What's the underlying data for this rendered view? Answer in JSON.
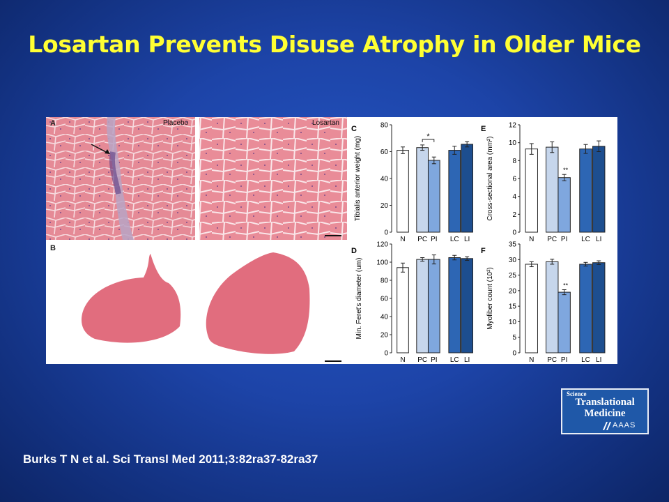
{
  "slide": {
    "title": "Losartan Prevents Disuse Atrophy in Older Mice",
    "citation": "Burks T N et al. Sci Transl Med 2011;3:82ra37-82ra37"
  },
  "figure": {
    "panel_a": {
      "letter": "A",
      "placebo_label": "Placebo",
      "losartan_label": "Losartan"
    },
    "panel_b": {
      "letter": "B"
    }
  },
  "logo": {
    "line1": "Science",
    "line2": "Translational",
    "line3": "Medicine",
    "line4": "AAAS"
  },
  "colors": {
    "N": "#ffffff",
    "PC": "#c6d6ec",
    "PI": "#7fa7de",
    "LC": "#2d66b4",
    "LI": "#1d4e8f",
    "title": "#ffff33",
    "background": "#1d44a8",
    "tissue": "#e2717f"
  },
  "chart_data": [
    {
      "type": "bar",
      "panel": "C",
      "categories": [
        "N",
        "PC",
        "PI",
        "LC",
        "LI"
      ],
      "values": [
        61,
        63,
        53.5,
        61,
        65.5
      ],
      "errors": [
        2.5,
        2,
        2.5,
        3,
        2
      ],
      "ylabel": "Tibialis anterior weight (mg)",
      "ylim": [
        0,
        80
      ],
      "yticks": [
        0,
        20,
        40,
        60,
        80
      ],
      "annotations": [
        {
          "text": "*",
          "between": [
            "PC",
            "PI"
          ]
        }
      ]
    },
    {
      "type": "bar",
      "panel": "D",
      "categories": [
        "N",
        "PC",
        "PI",
        "LC",
        "LI"
      ],
      "values": [
        94,
        103,
        103,
        105,
        104
      ],
      "errors": [
        5,
        2,
        5,
        2.5,
        2
      ],
      "ylabel": "Min. Feret's diameter (um)",
      "ylim": [
        0,
        120
      ],
      "yticks": [
        0,
        20,
        40,
        60,
        80,
        100,
        120
      ],
      "annotations": []
    },
    {
      "type": "bar",
      "panel": "E",
      "categories": [
        "N",
        "PC",
        "PI",
        "LC",
        "LI"
      ],
      "values": [
        9.3,
        9.5,
        6.1,
        9.3,
        9.6
      ],
      "errors": [
        0.6,
        0.6,
        0.35,
        0.5,
        0.6
      ],
      "ylabel": "Cross-sectional area (mm²)",
      "ylim": [
        0,
        12
      ],
      "yticks": [
        0,
        2,
        4,
        6,
        8,
        10,
        12
      ],
      "annotations": [
        {
          "text": "**",
          "above": "PI"
        }
      ]
    },
    {
      "type": "bar",
      "panel": "F",
      "categories": [
        "N",
        "PC",
        "PI",
        "LC",
        "LI"
      ],
      "values": [
        28.5,
        29.3,
        19.5,
        28.5,
        29
      ],
      "errors": [
        0.8,
        0.8,
        0.8,
        0.6,
        0.6
      ],
      "ylabel": "Myofiber count (10²)",
      "ylim": [
        0,
        35
      ],
      "yticks": [
        0,
        5,
        10,
        15,
        20,
        25,
        30,
        35
      ],
      "annotations": [
        {
          "text": "**",
          "above": "PI"
        }
      ]
    }
  ]
}
